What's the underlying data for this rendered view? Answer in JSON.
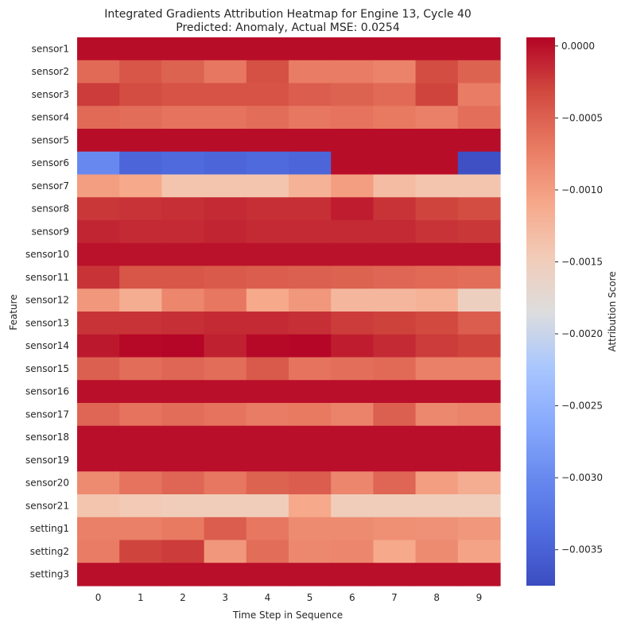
{
  "chart_data": {
    "type": "heatmap",
    "title": "Integrated Gradients Attribution Heatmap for Engine 13, Cycle 40",
    "subtitle": "Predicted: Anomaly, Actual MSE: 0.0254",
    "xlabel": "Time Step in Sequence",
    "ylabel": "Feature",
    "colorbar_label": "Attribution Score",
    "colormap": "coolwarm",
    "vmin": -0.00375,
    "vmax": 6e-05,
    "x_categories": [
      "0",
      "1",
      "2",
      "3",
      "4",
      "5",
      "6",
      "7",
      "8",
      "9"
    ],
    "y_categories": [
      "sensor1",
      "sensor2",
      "sensor3",
      "sensor4",
      "sensor5",
      "sensor6",
      "sensor7",
      "sensor8",
      "sensor9",
      "sensor10",
      "sensor11",
      "sensor12",
      "sensor13",
      "sensor14",
      "sensor15",
      "sensor16",
      "sensor17",
      "sensor18",
      "sensor19",
      "sensor20",
      "sensor21",
      "setting1",
      "setting2",
      "setting3"
    ],
    "colorbar_ticks": [
      {
        "value": 0.0,
        "label": "0.0000"
      },
      {
        "value": -0.0005,
        "label": "−0.0005"
      },
      {
        "value": -0.001,
        "label": "−0.0010"
      },
      {
        "value": -0.0015,
        "label": "−0.0015"
      },
      {
        "value": -0.002,
        "label": "−0.0020"
      },
      {
        "value": -0.0025,
        "label": "−0.0025"
      },
      {
        "value": -0.003,
        "label": "−0.0030"
      },
      {
        "value": -0.0035,
        "label": "−0.0035"
      }
    ],
    "values": [
      [
        1e-05,
        1e-05,
        1e-05,
        1e-05,
        1e-05,
        1e-05,
        1e-05,
        1e-05,
        1e-05,
        1e-05
      ],
      [
        -0.00058,
        -0.00042,
        -0.00052,
        -0.00068,
        -0.00038,
        -0.00072,
        -0.00072,
        -0.00078,
        -0.00035,
        -0.00052
      ],
      [
        -0.00025,
        -0.00035,
        -0.0004,
        -0.0004,
        -0.0004,
        -0.00048,
        -0.00052,
        -0.00058,
        -0.0003,
        -0.00072
      ],
      [
        -0.00058,
        -0.0006,
        -0.00065,
        -0.00065,
        -0.0006,
        -0.00068,
        -0.00065,
        -0.0007,
        -0.00075,
        -0.00062
      ],
      [
        1e-05,
        1e-05,
        1e-05,
        1e-05,
        1e-05,
        1e-05,
        1e-05,
        1e-05,
        1e-05,
        1e-05
      ],
      [
        -0.003,
        -0.00345,
        -0.0034,
        -0.00345,
        -0.0034,
        -0.00345,
        1e-05,
        1e-05,
        1e-05,
        -0.0037
      ],
      [
        -0.001,
        -0.0011,
        -0.0014,
        -0.0014,
        -0.0014,
        -0.0012,
        -0.001,
        -0.0013,
        -0.0014,
        -0.0014
      ],
      [
        -0.00022,
        -0.0002,
        -0.00018,
        -0.00015,
        -0.00018,
        -0.00018,
        -8e-05,
        -0.0002,
        -0.0003,
        -0.00035
      ],
      [
        -0.00012,
        -0.00015,
        -0.00015,
        -0.00012,
        -0.00015,
        -0.00015,
        -0.00015,
        -0.00015,
        -0.0002,
        -0.00022
      ],
      [
        -2e-05,
        -2e-05,
        -2e-05,
        -2e-05,
        -2e-05,
        -2e-05,
        -2e-05,
        -2e-05,
        -2e-05,
        -2e-05
      ],
      [
        -0.0002,
        -0.00042,
        -0.00042,
        -0.00045,
        -0.00048,
        -0.0005,
        -0.00052,
        -0.00055,
        -0.00058,
        -0.0006
      ],
      [
        -0.00095,
        -0.00115,
        -0.0008,
        -0.00068,
        -0.0011,
        -0.00095,
        -0.00125,
        -0.00125,
        -0.0012,
        -0.00155
      ],
      [
        -0.0002,
        -0.0002,
        -0.00018,
        -0.00015,
        -0.00015,
        -0.00018,
        -0.00025,
        -0.00028,
        -0.00032,
        -0.00048
      ],
      [
        -5e-05,
        4e-05,
        5e-05,
        -0.0001,
        3e-05,
        5e-05,
        -8e-05,
        -0.00015,
        -0.00025,
        -0.0003
      ],
      [
        -0.0005,
        -0.0006,
        -0.00055,
        -0.0006,
        -0.00045,
        -0.00065,
        -0.00062,
        -0.00058,
        -0.00075,
        -0.00075
      ],
      [
        0.0,
        0.0,
        0.0,
        0.0,
        0.0,
        0.0,
        0.0,
        0.0,
        0.0,
        0.0
      ],
      [
        -0.00055,
        -0.00065,
        -0.0006,
        -0.00065,
        -0.00072,
        -0.0007,
        -0.00078,
        -0.0005,
        -0.00082,
        -0.00078
      ],
      [
        0.0,
        0.0,
        0.0,
        0.0,
        0.0,
        0.0,
        0.0,
        0.0,
        0.0,
        0.0
      ],
      [
        0.0,
        0.0,
        0.0,
        0.0,
        0.0,
        0.0,
        0.0,
        0.0,
        0.0,
        0.0
      ],
      [
        -0.00085,
        -0.00065,
        -0.00055,
        -0.00068,
        -0.00052,
        -0.00048,
        -0.0008,
        -0.00055,
        -0.001,
        -0.00115
      ],
      [
        -0.0014,
        -0.00145,
        -0.0015,
        -0.0015,
        -0.0015,
        -0.0011,
        -0.0015,
        -0.0015,
        -0.0015,
        -0.0015
      ],
      [
        -0.00075,
        -0.00075,
        -0.0007,
        -0.00048,
        -0.00068,
        -0.00085,
        -0.00085,
        -0.00088,
        -0.0009,
        -0.00095
      ],
      [
        -0.00072,
        -0.0003,
        -0.00025,
        -0.00095,
        -0.0006,
        -0.00082,
        -0.0008,
        -0.0011,
        -0.00085,
        -0.00105
      ],
      [
        0.0,
        0.0,
        0.0,
        0.0,
        0.0,
        0.0,
        0.0,
        0.0,
        0.0,
        0.0
      ]
    ]
  }
}
